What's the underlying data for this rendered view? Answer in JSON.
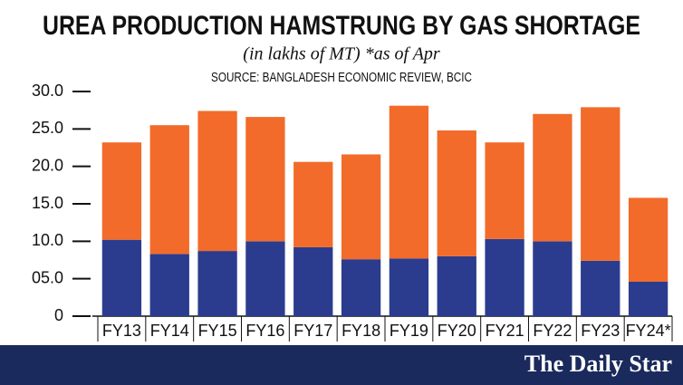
{
  "chart_data": {
    "type": "stacked-bar",
    "title": "UREA PRODUCTION HAMSTRUNG BY GAS SHORTAGE",
    "subtitle": "(in lakhs of MT) *as of Apr",
    "source": "SOURCE: BANGLADESH ECONOMIC REVIEW, BCIC",
    "categories": [
      "FY13",
      "FY14",
      "FY15",
      "FY16",
      "FY17",
      "FY18",
      "FY19",
      "FY20",
      "FY21",
      "FY22",
      "FY23",
      "FY24*"
    ],
    "series": [
      {
        "color": "#2b3c8e",
        "values": [
          10.2,
          8.3,
          8.7,
          10.0,
          9.2,
          7.6,
          7.7,
          8.0,
          10.3,
          10.0,
          7.4,
          4.6
        ]
      },
      {
        "color": "#f26b2a",
        "values": [
          13.0,
          17.2,
          18.7,
          16.6,
          11.4,
          14.0,
          20.4,
          16.8,
          12.9,
          17.0,
          20.5,
          11.2
        ]
      }
    ],
    "ylim": [
      0,
      30
    ],
    "yticks": [
      0,
      {
        "value": 5,
        "label": "05.0"
      },
      {
        "value": 10,
        "label": "10.0"
      },
      {
        "value": 15,
        "label": "15.0"
      },
      {
        "value": 20,
        "label": "20.0"
      },
      {
        "value": 25,
        "label": "25.0"
      },
      {
        "value": 30,
        "label": "30.0"
      }
    ],
    "grid": false
  },
  "footer": {
    "brand": "The Daily Star"
  }
}
